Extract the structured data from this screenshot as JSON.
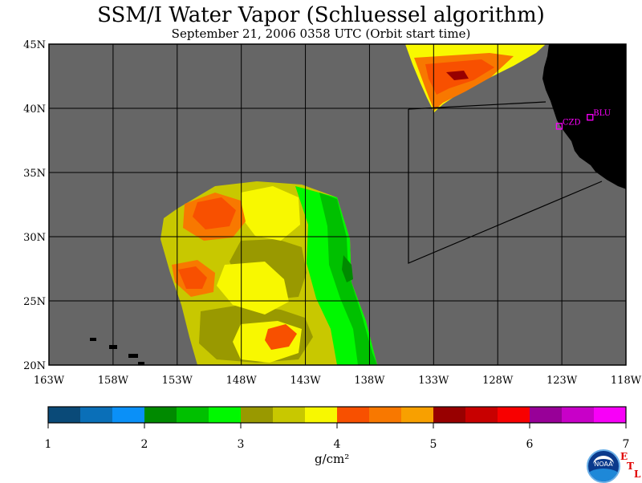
{
  "header": {
    "title": "SSM/I Water Vapor (Schluessel algorithm)",
    "subtitle": "September 21, 2006   0358 UTC   (Orbit start time)"
  },
  "axes": {
    "lat_labels": [
      "45N",
      "40N",
      "35N",
      "30N",
      "25N",
      "20N"
    ],
    "lon_labels": [
      "163W",
      "158W",
      "153W",
      "148W",
      "143W",
      "138W",
      "133W",
      "128W",
      "123W",
      "118W"
    ]
  },
  "stations": [
    {
      "code": "CZD",
      "lat": 38.6,
      "lon": -123.2
    },
    {
      "code": "BLU",
      "lat": 39.3,
      "lon": -120.8
    }
  ],
  "colorbar": {
    "ticks": [
      "1",
      "2",
      "3",
      "4",
      "5",
      "6",
      "7"
    ],
    "unit": "g/cm²",
    "colors": [
      "#0a4a78",
      "#0a6fb8",
      "#0a90f8",
      "#008a00",
      "#00c000",
      "#00f800",
      "#999900",
      "#c8c800",
      "#f8f800",
      "#f85000",
      "#f87800",
      "#f8a000",
      "#980000",
      "#c80000",
      "#f80000",
      "#980098",
      "#c800c8",
      "#f800f8"
    ]
  },
  "colors": {
    "background_ocean": "#666666",
    "land": "#000000",
    "station_marker": "#ff00ff"
  },
  "logo": {
    "agency_text": "NOAA",
    "etl_letters": [
      "E",
      "T",
      "L"
    ]
  }
}
